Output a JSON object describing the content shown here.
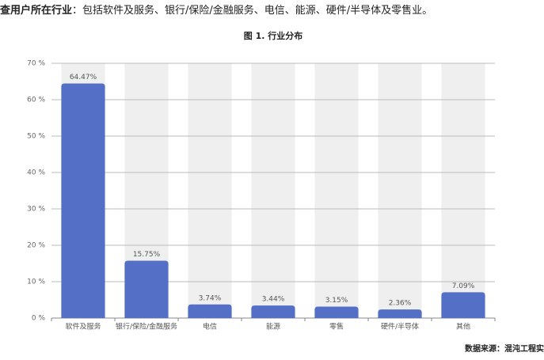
{
  "intro": {
    "lead": "查用户所在行业",
    "text": "：包括软件及服务、银行/保险/金融服务、电信、能源、硬件/半导体及零售业。"
  },
  "chart_data": {
    "type": "bar",
    "title": "图 1. 行业分布",
    "categories": [
      "软件及服务",
      "银行/保险/金融服务",
      "电信",
      "能源",
      "零售",
      "硬件/半导体",
      "其他"
    ],
    "values": [
      64.47,
      15.75,
      3.74,
      3.44,
      3.15,
      2.36,
      7.09
    ],
    "value_labels": [
      "64.47%",
      "15.75%",
      "3.74%",
      "3.44%",
      "3.15%",
      "2.36%",
      "7.09%"
    ],
    "color": "#5470c6",
    "ylim": [
      0,
      70
    ],
    "yticks": [
      {
        "value": 0,
        "label": "0 %"
      },
      {
        "value": 10,
        "label": "10 %"
      },
      {
        "value": 20,
        "label": "20 %"
      },
      {
        "value": 30,
        "label": "30 %"
      },
      {
        "value": 40,
        "label": "40 %"
      },
      {
        "value": 50,
        "label": "50 %"
      },
      {
        "value": 60,
        "label": "60 %"
      },
      {
        "value": 70,
        "label": "70 %"
      }
    ],
    "grid": true,
    "source": "数据来源：混沌工程实"
  }
}
